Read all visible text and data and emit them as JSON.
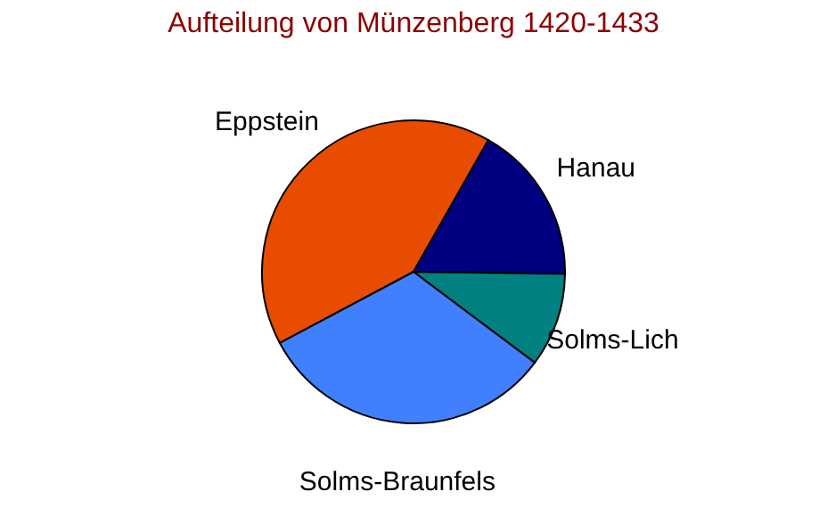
{
  "chart_data": {
    "type": "pie",
    "title": "Aufteilung von Münzenberg 1420-1433",
    "categories": [
      "Eppstein",
      "Hanau",
      "Solms-Lich",
      "Solms-Braunfels"
    ],
    "values": [
      41,
      17,
      10,
      32
    ],
    "colors": [
      "#e84c00",
      "#000080",
      "#008080",
      "#4080ff"
    ],
    "legend": false
  }
}
